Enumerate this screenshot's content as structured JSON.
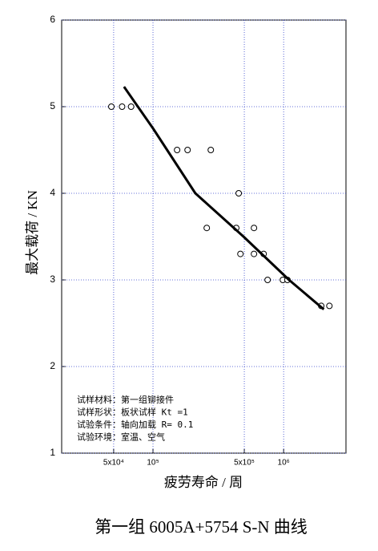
{
  "chart_data": {
    "type": "scatter",
    "xscale": "log",
    "y_label": "最大载荷 / KN",
    "x_label": "疲劳寿命 / 周",
    "caption": "第一组 6005A+5754 S-N 曲线",
    "annotations": [
      "试样材料：第一组铆接件",
      "试样形状：板状试样 Kt =1",
      "试验条件：轴向加载 R= 0.1",
      "试验环境：室温、空气"
    ],
    "xlim": [
      20000,
      3000000
    ],
    "ylim": [
      1,
      6
    ],
    "xticks": [
      {
        "value": 50000,
        "label": "5x10⁴"
      },
      {
        "value": 100000,
        "label": "10⁵"
      },
      {
        "value": 500000,
        "label": "5x10⁵"
      },
      {
        "value": 1000000,
        "label": "10⁶"
      }
    ],
    "yticks": [
      1,
      2,
      3,
      4,
      5,
      6
    ],
    "grid": true,
    "grid_color": "#3344cc",
    "series": [
      {
        "marker": "circle",
        "color": "#000000",
        "x": [
          48000,
          58000,
          68000,
          153000,
          184000,
          277000,
          258000,
          453000,
          434000,
          593000,
          467000,
          593000,
          703000,
          754000,
          986000,
          1070000,
          1940000,
          2240000
        ],
        "values": [
          5,
          5,
          5,
          4.5,
          4.5,
          4.5,
          3.6,
          4.0,
          3.6,
          3.6,
          3.3,
          3.3,
          3.3,
          3.0,
          3.0,
          3.0,
          2.7,
          2.7
        ]
      },
      {
        "line": true,
        "color": "#000000",
        "x": [
          60000,
          100000,
          211000,
          493000,
          1100000,
          2030000
        ],
        "values": [
          5.23,
          4.75,
          4.0,
          3.5,
          3.0,
          2.66
        ]
      }
    ]
  }
}
